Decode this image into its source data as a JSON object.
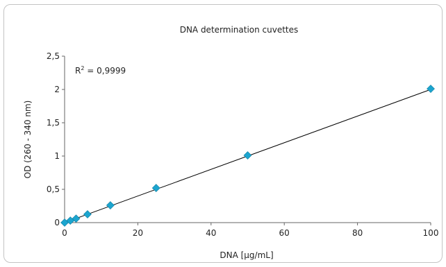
{
  "chart_data": {
    "type": "scatter",
    "title": "DNA determination cuvettes",
    "xlabel": "DNA [µg/mL]",
    "ylabel": "OD (260 - 340 nm)",
    "xlim": [
      0,
      100
    ],
    "ylim": [
      0,
      2.5
    ],
    "xticks": [
      0,
      20,
      40,
      60,
      80,
      100
    ],
    "xtick_labels": [
      "0",
      "20",
      "40",
      "60",
      "80",
      "100"
    ],
    "yticks": [
      0,
      0.5,
      1,
      1.5,
      2,
      2.5
    ],
    "ytick_labels": [
      "0",
      "0,5",
      "1",
      "1,5",
      "2",
      "2,5"
    ],
    "grid": false,
    "points": {
      "x": [
        0,
        1.5625,
        3.125,
        6.25,
        12.5,
        25,
        50,
        100
      ],
      "y": [
        0,
        0.03,
        0.06,
        0.125,
        0.26,
        0.52,
        1.01,
        2.01
      ]
    },
    "trendline": {
      "type": "linear",
      "x": [
        0,
        100
      ],
      "y": [
        0,
        2.0
      ]
    },
    "annotation": {
      "prefix": "R",
      "superscript": "2",
      "suffix": " = 0,9999"
    },
    "marker_color": "#1ca5cf",
    "line_color": "#000000",
    "axis_color": "#666666"
  }
}
